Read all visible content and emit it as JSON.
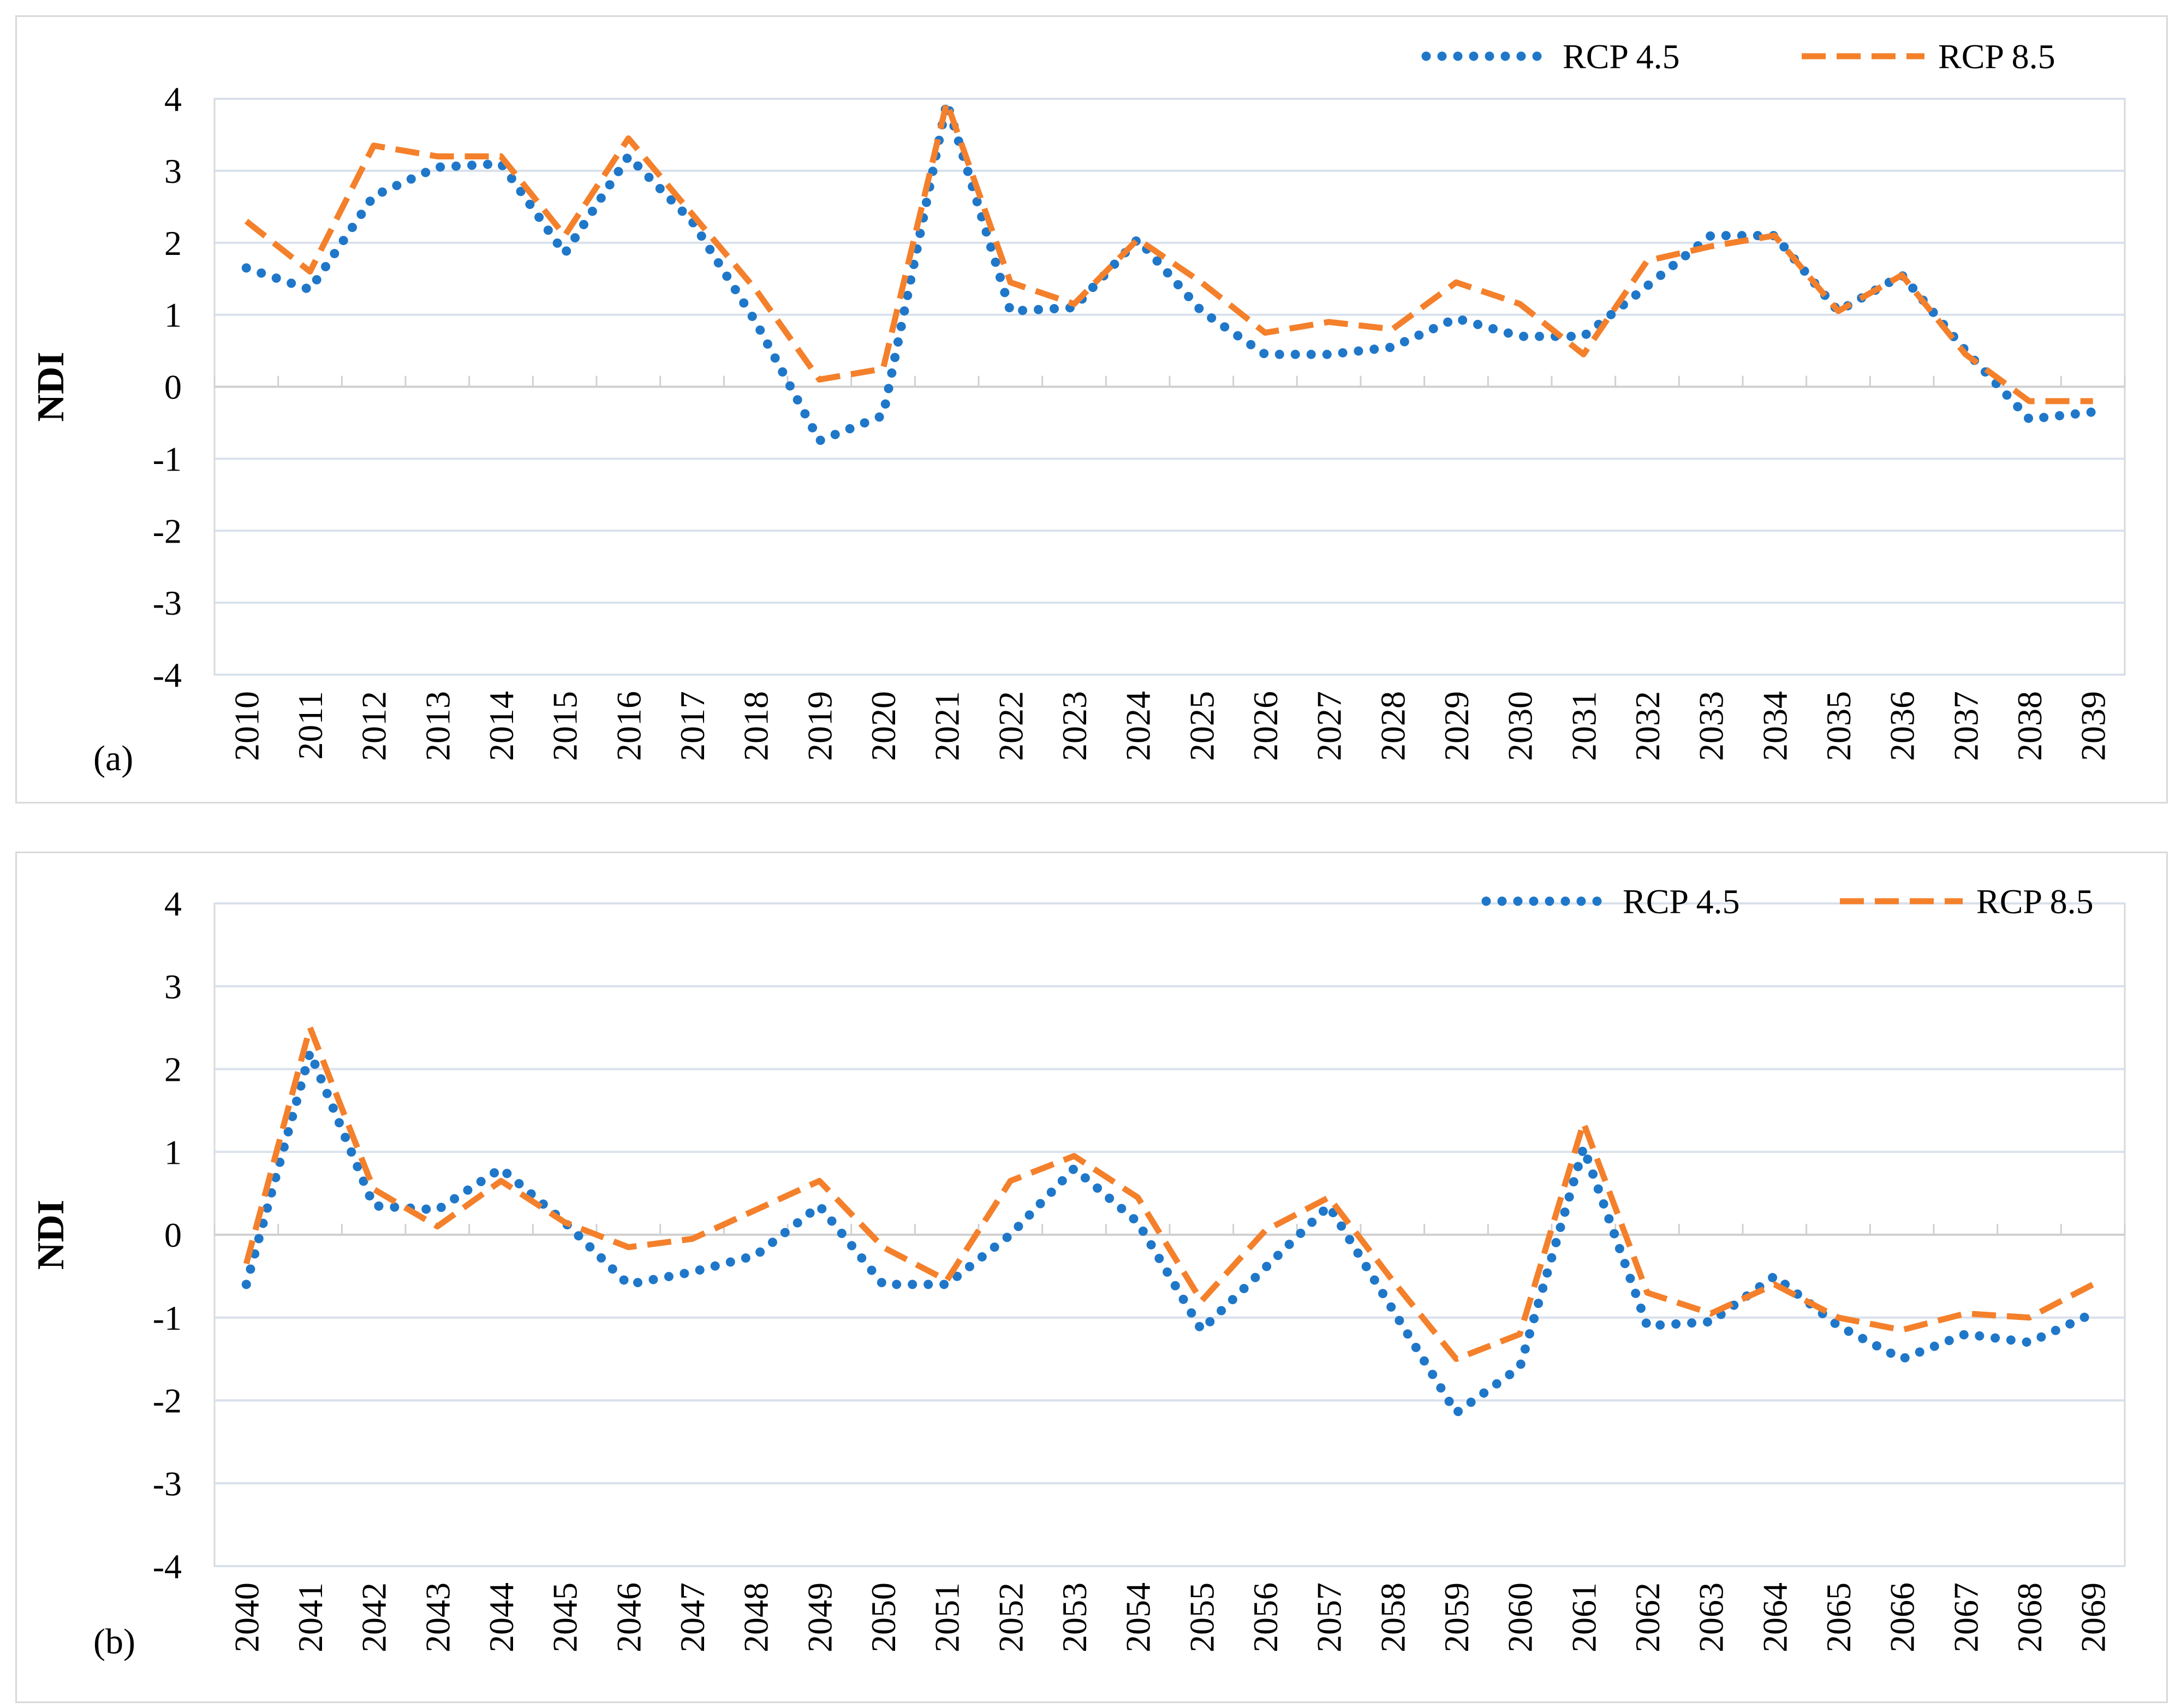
{
  "chart_data": [
    {
      "type": "line",
      "panel_label": "(a)",
      "ylabel": "NDI",
      "xlabel": "",
      "ylim": [
        -4,
        4
      ],
      "yticks": [
        4,
        3,
        2,
        1,
        0,
        -1,
        -2,
        -3,
        -4
      ],
      "categories": [
        "2010",
        "2011",
        "2012",
        "2013",
        "2014",
        "2015",
        "2016",
        "2017",
        "2018",
        "2019",
        "2020",
        "2021",
        "2022",
        "2023",
        "2024",
        "2025",
        "2026",
        "2027",
        "2028",
        "2029",
        "2030",
        "2031",
        "2032",
        "2033",
        "2034",
        "2035",
        "2036",
        "2037",
        "2038",
        "2039"
      ],
      "legend_position": "top-right",
      "series": [
        {
          "name": "RCP 4.5",
          "style": "dotted",
          "color": "#1f77c9",
          "values": [
            1.65,
            1.35,
            2.65,
            3.05,
            3.1,
            1.85,
            3.2,
            2.3,
            0.9,
            -0.75,
            -0.4,
            3.95,
            1.05,
            1.1,
            2.05,
            1.05,
            0.45,
            0.45,
            0.55,
            0.95,
            0.7,
            0.7,
            1.4,
            2.1,
            2.1,
            1.05,
            1.55,
            0.5,
            -0.45,
            -0.35
          ]
        },
        {
          "name": "RCP 8.5",
          "style": "dashed",
          "color": "#f4802b",
          "values": [
            2.3,
            1.6,
            3.35,
            3.2,
            3.2,
            2.1,
            3.45,
            2.4,
            1.35,
            0.1,
            0.25,
            3.95,
            1.45,
            1.15,
            2.05,
            1.45,
            0.75,
            0.9,
            0.8,
            1.45,
            1.15,
            0.45,
            1.75,
            1.95,
            2.1,
            1.05,
            1.55,
            0.45,
            -0.2,
            -0.2
          ]
        }
      ]
    },
    {
      "type": "line",
      "panel_label": "(b)",
      "ylabel": "NDI",
      "xlabel": "",
      "ylim": [
        -4,
        4
      ],
      "yticks": [
        4,
        3,
        2,
        1,
        0,
        -1,
        -2,
        -3,
        -4
      ],
      "categories": [
        "2040",
        "2041",
        "2042",
        "2043",
        "2044",
        "2045",
        "2046",
        "2047",
        "2048",
        "2049",
        "2050",
        "2051",
        "2052",
        "2053",
        "2054",
        "2055",
        "2056",
        "2057",
        "2058",
        "2059",
        "2060",
        "2061",
        "2062",
        "2063",
        "2064",
        "2065",
        "2066",
        "2067",
        "2068",
        "2069"
      ],
      "legend_position": "top-right",
      "series": [
        {
          "name": "RCP 4.5",
          "style": "dotted",
          "color": "#1f77c9",
          "values": [
            -0.6,
            2.2,
            0.35,
            0.3,
            0.8,
            0.15,
            -0.6,
            -0.45,
            -0.25,
            0.35,
            -0.6,
            -0.6,
            0.0,
            0.8,
            0.15,
            -1.15,
            -0.4,
            0.35,
            -0.9,
            -2.15,
            -1.6,
            1.05,
            -1.1,
            -1.05,
            -0.5,
            -1.1,
            -1.5,
            -1.2,
            -1.3,
            -0.95
          ]
        },
        {
          "name": "RCP 8.5",
          "style": "dashed",
          "color": "#f4802b",
          "values": [
            -0.35,
            2.5,
            0.55,
            0.1,
            0.65,
            0.15,
            -0.15,
            -0.05,
            0.3,
            0.65,
            -0.15,
            -0.55,
            0.65,
            0.95,
            0.45,
            -0.8,
            0.05,
            0.45,
            -0.55,
            -1.5,
            -1.2,
            1.35,
            -0.7,
            -0.95,
            -0.6,
            -1.0,
            -1.15,
            -0.95,
            -1.0,
            -0.6
          ]
        }
      ]
    }
  ]
}
